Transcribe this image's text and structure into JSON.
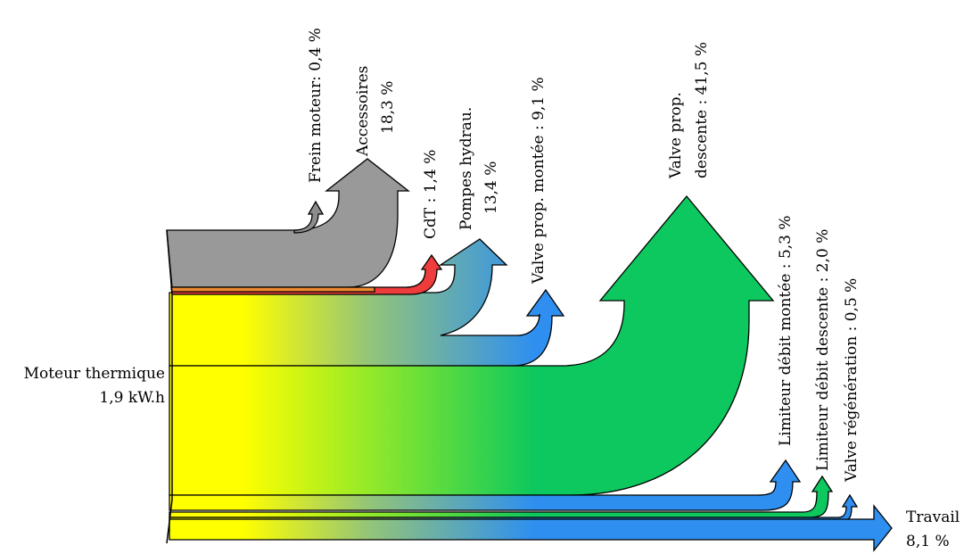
{
  "diagram": {
    "type": "sankey",
    "source": {
      "label_line1": "Moteur thermique",
      "label_line2": "1,9 kW.h"
    },
    "flows": [
      {
        "id": "frein",
        "label_line1": "Frein moteur: 0,4 %",
        "label_line2": "",
        "value_pct": 0.4,
        "color": "#8c8c8c"
      },
      {
        "id": "accessoires",
        "label_line1": "Accessoires",
        "label_line2": "18,3 %",
        "value_pct": 18.3,
        "color": "#999999"
      },
      {
        "id": "cdt",
        "label_line1": "CdT : 1,4 %",
        "label_line2": "",
        "value_pct": 1.4,
        "color": "#ee3b3b"
      },
      {
        "id": "pompes",
        "label_line1": "Pompes hydrau.",
        "label_line2": "13,4 %",
        "value_pct": 13.4,
        "color": "#2e8ff0"
      },
      {
        "id": "vpm",
        "label_line1": "Valve prop. montée : 9,1 %",
        "label_line2": "",
        "value_pct": 9.1,
        "color": "#2e8ff0"
      },
      {
        "id": "vpd",
        "label_line1": "Valve prop.",
        "label_line2": "descente : 41,5 %",
        "value_pct": 41.5,
        "color": "#0cc85e"
      },
      {
        "id": "ldm",
        "label_line1": "Limiteur débit montée : 5,3 %",
        "label_line2": "",
        "value_pct": 5.3,
        "color": "#2e8ff0"
      },
      {
        "id": "ldd",
        "label_line1": "Limiteur débit descente : 2,0 %",
        "label_line2": "",
        "value_pct": 2.0,
        "color": "#0cc85e"
      },
      {
        "id": "vr",
        "label_line1": "Valve régénération : 0,5 %",
        "label_line2": "",
        "value_pct": 0.5,
        "color": "#2e8ff0"
      },
      {
        "id": "travail",
        "label_line1": "Travail",
        "label_line2": "8,1 %",
        "value_pct": 8.1,
        "color": "#2e8ff0"
      }
    ],
    "colors": {
      "gradient_start": "#ffff00",
      "gradient_mid": "#8fe82a",
      "green": "#0cc85e",
      "blue": "#2e8ff0",
      "orange": "#f08a30",
      "gray": "#999999",
      "red": "#ee3b3b"
    }
  }
}
